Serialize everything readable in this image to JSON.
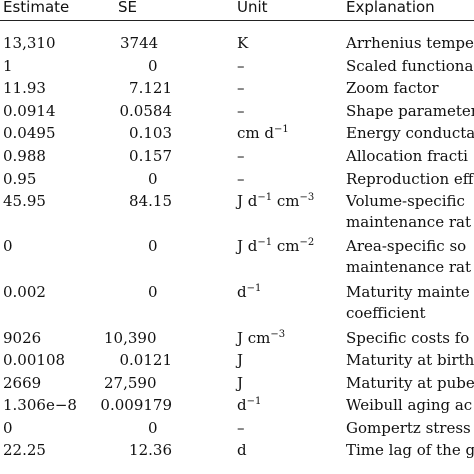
{
  "header": {
    "estimate": "Estimate",
    "se": "SE",
    "unit": "Unit",
    "explanation": "Explanation"
  },
  "rows": [
    {
      "estimate": "13,310",
      "se": "3744",
      "unit": "K",
      "unit_sup": "",
      "unit_tail": "",
      "unit_sup2": "",
      "explanation": [
        "Arrhenius tempe"
      ]
    },
    {
      "estimate": "1",
      "se": "0",
      "unit": "–",
      "unit_sup": "",
      "unit_tail": "",
      "unit_sup2": "",
      "explanation": [
        "Scaled functiona"
      ]
    },
    {
      "estimate": "11.93",
      "se": "7.121",
      "unit": "–",
      "unit_sup": "",
      "unit_tail": "",
      "unit_sup2": "",
      "explanation": [
        "Zoom factor"
      ]
    },
    {
      "estimate": "0.0914",
      "se": "0.0584",
      "unit": "–",
      "unit_sup": "",
      "unit_tail": "",
      "unit_sup2": "",
      "explanation": [
        "Shape parameter"
      ]
    },
    {
      "estimate": "0.0495",
      "se": "0.103",
      "unit": "cm d",
      "unit_sup": "−1",
      "unit_tail": "",
      "unit_sup2": "",
      "explanation": [
        "Energy conducta"
      ]
    },
    {
      "estimate": "0.988",
      "se": "0.157",
      "unit": "–",
      "unit_sup": "",
      "unit_tail": "",
      "unit_sup2": "",
      "explanation": [
        "Allocation fracti"
      ]
    },
    {
      "estimate": "0.95",
      "se": "0",
      "unit": "–",
      "unit_sup": "",
      "unit_tail": "",
      "unit_sup2": "",
      "explanation": [
        "Reproduction eff"
      ]
    },
    {
      "estimate": "45.95",
      "se": "84.15",
      "unit": "J d",
      "unit_sup": "−1",
      "unit_tail": " cm",
      "unit_sup2": "−3",
      "explanation": [
        "Volume-specific",
        "maintenance rat"
      ]
    },
    {
      "estimate": "0",
      "se": "0",
      "unit": "J d",
      "unit_sup": "−1",
      "unit_tail": " cm",
      "unit_sup2": "−2",
      "explanation": [
        "Area-specific so",
        "maintenance rat"
      ]
    },
    {
      "estimate": "0.002",
      "se": "0",
      "unit": "d",
      "unit_sup": "−1",
      "unit_tail": "",
      "unit_sup2": "",
      "explanation": [
        "Maturity mainte",
        "coefficient"
      ]
    },
    {
      "estimate": "9026",
      "se": "10,390",
      "unit": "J cm",
      "unit_sup": "−3",
      "unit_tail": "",
      "unit_sup2": "",
      "explanation": [
        "Specific costs fo"
      ]
    },
    {
      "estimate": "0.00108",
      "se": "0.0121",
      "unit": "J",
      "unit_sup": "",
      "unit_tail": "",
      "unit_sup2": "",
      "explanation": [
        "Maturity at birth"
      ]
    },
    {
      "estimate": "2669",
      "se": "27,590",
      "unit": "J",
      "unit_sup": "",
      "unit_tail": "",
      "unit_sup2": "",
      "explanation": [
        "Maturity at pube"
      ]
    },
    {
      "estimate": "1.306e−8",
      "se": "0.009179",
      "unit": "d",
      "unit_sup": "−1",
      "unit_tail": "",
      "unit_sup2": "",
      "explanation": [
        "Weibull aging ac"
      ]
    },
    {
      "estimate": "0",
      "se": "0",
      "unit": "–",
      "unit_sup": "",
      "unit_tail": "",
      "unit_sup2": "",
      "explanation": [
        "Gompertz stress"
      ]
    },
    {
      "estimate": "22.25",
      "se": "12.36",
      "unit": "d",
      "unit_sup": "",
      "unit_tail": "",
      "unit_sup2": "",
      "explanation": [
        "Time lag of the g"
      ]
    }
  ]
}
